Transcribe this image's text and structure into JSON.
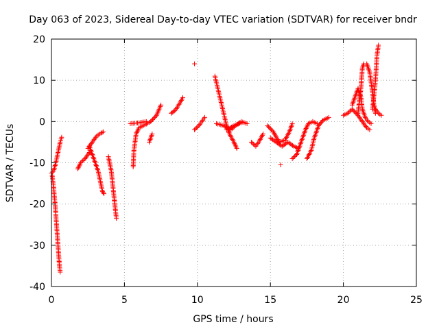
{
  "chart_data": {
    "type": "scatter",
    "title": "Day 063 of 2023, Sidereal Day-to-day VTEC variation (SDTVAR) for receiver bndr",
    "xlabel": "GPS time / hours",
    "ylabel": "SDTVAR / TECUs",
    "xlim": [
      0,
      25
    ],
    "ylim": [
      -40,
      20
    ],
    "xticks": [
      0,
      5,
      10,
      15,
      20,
      25
    ],
    "yticks": [
      -40,
      -30,
      -20,
      -10,
      0,
      10,
      20
    ],
    "xtick_labels": [
      "0",
      "5",
      "10",
      "15",
      "20",
      "25"
    ],
    "ytick_labels": [
      "-40",
      "-30",
      "-20",
      "-10",
      "0",
      "10",
      "20"
    ],
    "grid": true,
    "marker": "plus",
    "color": "#ff0000",
    "arcs": [
      [
        [
          0.0,
          -12.5
        ],
        [
          0.15,
          -12.0
        ],
        [
          0.3,
          -10.0
        ],
        [
          0.45,
          -7.5
        ],
        [
          0.6,
          -5.0
        ],
        [
          0.7,
          -3.8
        ]
      ],
      [
        [
          0.05,
          -13.0
        ],
        [
          0.15,
          -16.0
        ],
        [
          0.25,
          -20.0
        ],
        [
          0.35,
          -25.0
        ],
        [
          0.45,
          -30.0
        ],
        [
          0.55,
          -35.0
        ],
        [
          0.6,
          -36.5
        ]
      ],
      [
        [
          1.8,
          -11.5
        ],
        [
          2.0,
          -10.0
        ],
        [
          2.3,
          -9.0
        ],
        [
          2.6,
          -7.5
        ]
      ],
      [
        [
          2.5,
          -6.5
        ],
        [
          2.8,
          -5.0
        ],
        [
          3.1,
          -3.5
        ],
        [
          3.4,
          -2.8
        ],
        [
          3.55,
          -2.5
        ]
      ],
      [
        [
          2.6,
          -6.0
        ],
        [
          2.9,
          -9.0
        ],
        [
          3.2,
          -12.0
        ],
        [
          3.5,
          -17.0
        ],
        [
          3.6,
          -17.5
        ]
      ],
      [
        [
          3.9,
          -8.5
        ],
        [
          4.1,
          -12.0
        ],
        [
          4.25,
          -17.0
        ],
        [
          4.4,
          -22.0
        ],
        [
          4.45,
          -23.5
        ]
      ],
      [
        [
          5.4,
          -0.5
        ],
        [
          6.0,
          -0.3
        ],
        [
          6.5,
          0.0
        ]
      ],
      [
        [
          5.6,
          -11.0
        ],
        [
          5.65,
          -7.0
        ],
        [
          5.8,
          -3.0
        ],
        [
          6.0,
          -1.5
        ],
        [
          6.4,
          -0.8
        ],
        [
          6.8,
          0.0
        ],
        [
          7.2,
          1.5
        ],
        [
          7.5,
          4.0
        ]
      ],
      [
        [
          6.7,
          -5.0
        ],
        [
          6.8,
          -4.0
        ],
        [
          6.9,
          -3.0
        ]
      ],
      [
        [
          8.2,
          2.0
        ],
        [
          8.5,
          2.8
        ],
        [
          8.8,
          4.5
        ],
        [
          9.0,
          5.8
        ]
      ],
      [
        [
          9.8,
          -2.0
        ],
        [
          10.1,
          -1.0
        ],
        [
          10.3,
          0.0
        ],
        [
          10.5,
          1.0
        ]
      ],
      [
        [
          9.8,
          14.0
        ]
      ],
      [
        [
          11.2,
          11.0
        ],
        [
          11.4,
          8.0
        ],
        [
          11.6,
          5.0
        ],
        [
          11.8,
          2.0
        ],
        [
          12.0,
          -1.0
        ],
        [
          12.2,
          -3.0
        ],
        [
          12.5,
          -5.0
        ],
        [
          12.7,
          -6.5
        ]
      ],
      [
        [
          11.3,
          -0.5
        ],
        [
          11.8,
          -1.0
        ],
        [
          12.3,
          -2.0
        ],
        [
          12.6,
          -1.0
        ],
        [
          13.0,
          0.0
        ],
        [
          13.4,
          -0.5
        ]
      ],
      [
        [
          12.0,
          -2.0
        ],
        [
          12.5,
          -1.0
        ],
        [
          13.0,
          -0.3
        ]
      ],
      [
        [
          13.7,
          -5.0
        ],
        [
          14.0,
          -6.0
        ],
        [
          14.2,
          -5.0
        ],
        [
          14.5,
          -3.0
        ]
      ],
      [
        [
          14.8,
          -1.0
        ],
        [
          15.2,
          -2.5
        ],
        [
          15.6,
          -5.0
        ],
        [
          16.0,
          -4.5
        ],
        [
          16.3,
          -2.5
        ],
        [
          16.5,
          -0.5
        ]
      ],
      [
        [
          15.0,
          -4.0
        ],
        [
          15.4,
          -5.0
        ],
        [
          15.8,
          -6.0
        ],
        [
          16.2,
          -5.0
        ],
        [
          16.6,
          -6.0
        ],
        [
          16.9,
          -6.5
        ]
      ],
      [
        [
          15.7,
          -10.5
        ]
      ],
      [
        [
          16.5,
          -9.0
        ],
        [
          16.8,
          -8.0
        ],
        [
          17.1,
          -5.0
        ],
        [
          17.4,
          -2.0
        ],
        [
          17.6,
          -0.5
        ],
        [
          17.9,
          0.0
        ],
        [
          18.2,
          -0.5
        ]
      ],
      [
        [
          17.5,
          -9.0
        ],
        [
          17.8,
          -7.0
        ],
        [
          18.0,
          -4.0
        ],
        [
          18.3,
          -1.0
        ],
        [
          18.6,
          0.3
        ],
        [
          19.0,
          1.0
        ]
      ],
      [
        [
          20.0,
          1.5
        ],
        [
          20.3,
          2.0
        ],
        [
          20.6,
          3.0
        ],
        [
          21.0,
          1.5
        ],
        [
          21.3,
          0.0
        ],
        [
          21.6,
          -1.5
        ],
        [
          21.8,
          -2.0
        ]
      ],
      [
        [
          20.6,
          4.0
        ],
        [
          20.9,
          7.0
        ],
        [
          21.0,
          8.0
        ],
        [
          21.2,
          6.0
        ],
        [
          21.3,
          3.0
        ],
        [
          21.5,
          1.0
        ],
        [
          21.7,
          0.0
        ],
        [
          21.9,
          -0.5
        ]
      ],
      [
        [
          21.0,
          2.0
        ],
        [
          21.2,
          8.0
        ],
        [
          21.3,
          13.0
        ],
        [
          21.4,
          14.0
        ]
      ],
      [
        [
          21.6,
          14.0
        ],
        [
          21.8,
          12.0
        ],
        [
          22.0,
          7.0
        ],
        [
          22.1,
          4.0
        ],
        [
          22.2,
          2.0
        ]
      ],
      [
        [
          22.0,
          3.0
        ],
        [
          22.2,
          10.0
        ],
        [
          22.3,
          16.0
        ],
        [
          22.4,
          18.5
        ]
      ],
      [
        [
          22.2,
          3.0
        ],
        [
          22.4,
          2.0
        ],
        [
          22.6,
          1.5
        ]
      ]
    ]
  }
}
